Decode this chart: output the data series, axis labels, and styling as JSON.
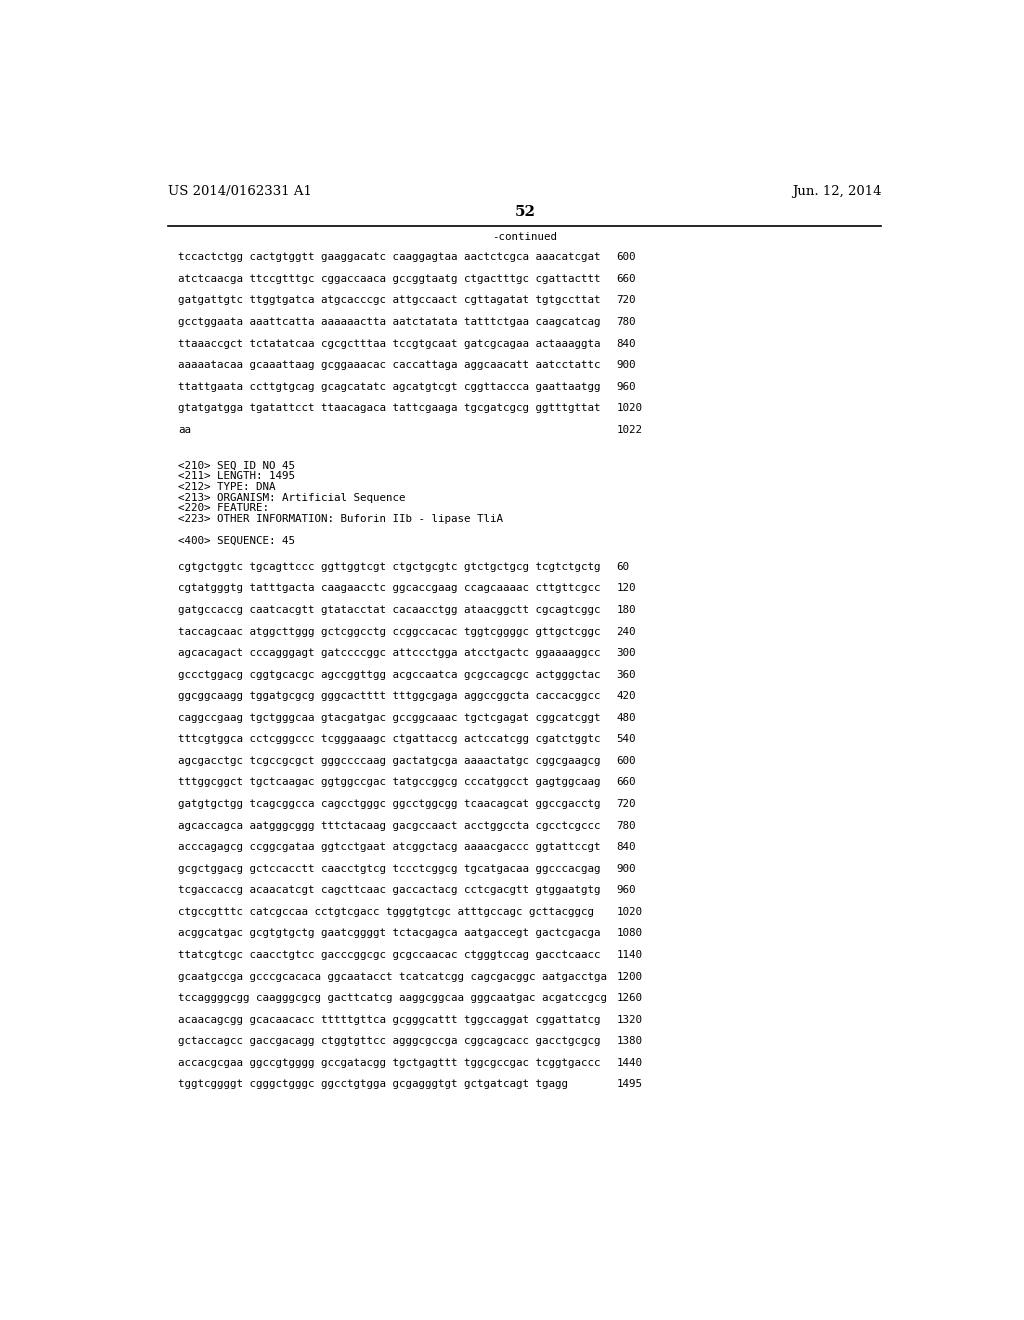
{
  "header_left": "US 2014/0162331 A1",
  "header_right": "Jun. 12, 2014",
  "page_number": "52",
  "continued_label": "-continued",
  "background_color": "#ffffff",
  "text_color": "#000000",
  "font_size_header": 9.5,
  "font_size_body": 7.8,
  "font_size_page": 11,
  "sequence_lines_top": [
    [
      "tccactctgg cactgtggtt gaaggacatc caaggagtaa aactctcgca aaacatcgat",
      "600"
    ],
    [
      "atctcaacga ttccgtttgc cggaccaaca gccggtaatg ctgactttgc cgattacttt",
      "660"
    ],
    [
      "gatgattgtc ttggtgatca atgcacccgc attgccaact cgttagatat tgtgccttat",
      "720"
    ],
    [
      "gcctggaata aaattcatta aaaaaactta aatctatata tatttctgaa caagcatcag",
      "780"
    ],
    [
      "ttaaaccgct tctatatcaa cgcgctttaa tccgtgcaat gatcgcagaa actaaaggta",
      "840"
    ],
    [
      "aaaaatacaa gcaaattaag gcggaaacac caccattaga aggcaacatt aatcctattc",
      "900"
    ],
    [
      "ttattgaata ccttgtgcag gcagcatatc agcatgtcgt cggttaccca gaattaatgg",
      "960"
    ],
    [
      "gtatgatgga tgatattcct ttaacagaca tattcgaaga tgcgatcgcg ggtttgttat",
      "1020"
    ],
    [
      "aa",
      "1022"
    ]
  ],
  "metadata_lines": [
    "<210> SEQ ID NO 45",
    "<211> LENGTH: 1495",
    "<212> TYPE: DNA",
    "<213> ORGANISM: Artificial Sequence",
    "<220> FEATURE:",
    "<223> OTHER INFORMATION: Buforin IIb - lipase TliA"
  ],
  "sequence_label": "<400> SEQUENCE: 45",
  "sequence_lines_bottom": [
    [
      "cgtgctggtc tgcagttccc ggttggtcgt ctgctgcgtc gtctgctgcg tcgtctgctg",
      "60"
    ],
    [
      "cgtatgggtg tatttgacta caagaacctc ggcaccgaag ccagcaaaac cttgttcgcc",
      "120"
    ],
    [
      "gatgccaccg caatcacgtt gtatacctat cacaacctgg ataacggctt cgcagtcggc",
      "180"
    ],
    [
      "taccagcaac atggcttggg gctcggcctg ccggccacac tggtcggggc gttgctcggc",
      "240"
    ],
    [
      "agcacagact cccagggagt gatccccggc attccctgga atcctgactc ggaaaaggcc",
      "300"
    ],
    [
      "gccctggacg cggtgcacgc agccggttgg acgccaatca gcgccagcgc actgggctac",
      "360"
    ],
    [
      "ggcggcaagg tggatgcgcg gggcactttt tttggcgaga aggccggcta caccacggcc",
      "420"
    ],
    [
      "caggccgaag tgctgggcaa gtacgatgac gccggcaaac tgctcgagat cggcatcggt",
      "480"
    ],
    [
      "tttcgtggca cctcgggccc tcgggaaagc ctgattaccg actccatcgg cgatctggtc",
      "540"
    ],
    [
      "agcgacctgc tcgccgcgct gggccccaag gactatgcga aaaactatgc cggcgaagcg",
      "600"
    ],
    [
      "tttggcggct tgctcaagac ggtggccgac tatgccggcg cccatggcct gagtggcaag",
      "660"
    ],
    [
      "gatgtgctgg tcagcggcca cagcctgggc ggcctggcgg tcaacagcat ggccgacctg",
      "720"
    ],
    [
      "agcaccagca aatgggcggg tttctacaag gacgccaact acctggccta cgcctcgccc",
      "780"
    ],
    [
      "acccagagcg ccggcgataa ggtcctgaat atcggctacg aaaacgaccc ggtattccgt",
      "840"
    ],
    [
      "gcgctggacg gctccacctt caacctgtcg tccctcggcg tgcatgacaa ggcccacgag",
      "900"
    ],
    [
      "tcgaccaccg acaacatcgt cagcttcaac gaccactacg cctcgacgtt gtggaatgtg",
      "960"
    ],
    [
      "ctgccgtttc catcgccaa cctgtcgacc tgggtgtcgc atttgccagc gcttacggcg",
      "1020"
    ],
    [
      "acggcatgac gcgtgtgctg gaatcggggt tctacgagca aatgaccegt gactcgacga",
      "1080"
    ],
    [
      "ttatcgtcgc caacctgtcc gacccggcgc gcgccaacac ctgggtccag gacctcaacc",
      "1140"
    ],
    [
      "gcaatgccga gcccgcacaca ggcaatacct tcatcatcgg cagcgacggc aatgacctga",
      "1200"
    ],
    [
      "tccaggggcgg caagggcgcg gacttcatcg aaggcggcaa gggcaatgac acgatccgcg",
      "1260"
    ],
    [
      "acaacagcgg gcacaacacc tttttgttca gcgggcattt tggccaggat cggattatcg",
      "1320"
    ],
    [
      "gctaccagcc gaccgacagg ctggtgttcc agggcgccga cggcagcacc gacctgcgcg",
      "1380"
    ],
    [
      "accacgcgaa ggccgtgggg gccgatacgg tgctgagttt tggcgccgac tcggtgaccc",
      "1440"
    ],
    [
      "tggtcggggt cgggctgggc ggcctgtgga gcgagggtgt gctgatcagt tgagg",
      "1495"
    ]
  ]
}
